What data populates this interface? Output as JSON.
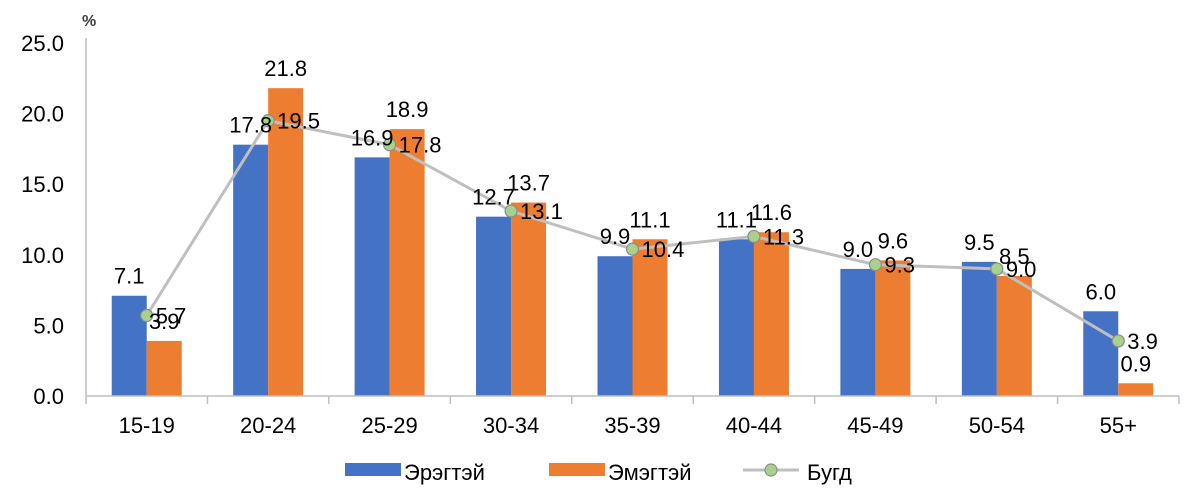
{
  "chart_data": {
    "type": "bar",
    "ylabel": "%",
    "ylim": [
      0,
      25
    ],
    "yticks": [
      "0.0",
      "5.0",
      "10.0",
      "15.0",
      "20.0",
      "25.0"
    ],
    "categories": [
      "15-19",
      "20-24",
      "25-29",
      "30-34",
      "35-39",
      "40-44",
      "45-49",
      "50-54",
      "55+"
    ],
    "series": [
      {
        "name": "Эрэгтэй",
        "kind": "bar",
        "color": "#4472C4",
        "values": [
          7.1,
          17.8,
          16.9,
          12.7,
          9.9,
          11.1,
          9.0,
          9.5,
          6.0
        ]
      },
      {
        "name": "Эмэгтэй",
        "kind": "bar",
        "color": "#ED7D31",
        "values": [
          3.9,
          21.8,
          18.9,
          13.7,
          11.1,
          11.6,
          9.6,
          8.5,
          0.9
        ]
      },
      {
        "name": "Бугд",
        "kind": "line",
        "color": "#BFBFBF",
        "marker_color": "#A9D18E",
        "values": [
          5.7,
          19.5,
          17.8,
          13.1,
          10.4,
          11.3,
          9.3,
          9.0,
          3.9
        ]
      }
    ],
    "bar_labels": {
      "male": [
        "7.1",
        "17.8",
        "16.9",
        "12.7",
        "9.9",
        "11.1",
        "9.0",
        "9.5",
        "6.0"
      ],
      "female": [
        "3.9",
        "21.8",
        "18.9",
        "13.7",
        "11.1",
        "11.6",
        "9.6",
        "8.5",
        "0.9"
      ],
      "total": [
        "5.7",
        "19.5",
        "17.8",
        "13.1",
        "10.4",
        "11.3",
        "9.3",
        "9.0",
        "3.9"
      ]
    },
    "grid": false,
    "legend_position": "bottom"
  }
}
